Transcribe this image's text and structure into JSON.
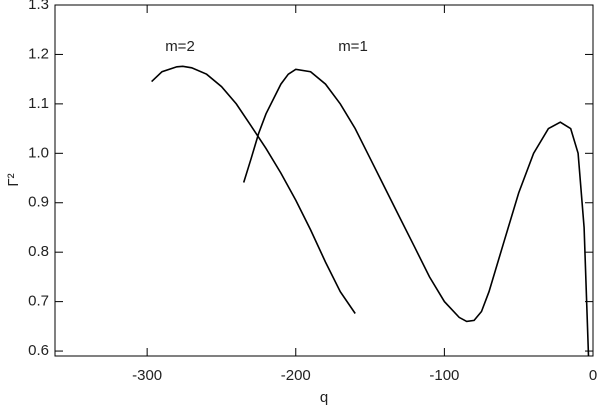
{
  "chart_data": {
    "type": "line",
    "xlabel": "q",
    "ylabel": "Γ²",
    "annotations": [
      "m=2",
      "m=1"
    ],
    "series": [
      {
        "name": "m=1",
        "color": "#000000",
        "x": [
          -235,
          -230,
          -225,
          -220,
          -210,
          -205,
          -200,
          -190,
          -180,
          -170,
          -160,
          -150,
          -140,
          -130,
          -120,
          -110,
          -100,
          -90,
          -85,
          -80,
          -75,
          -70,
          -60,
          -50,
          -40,
          -30,
          -22,
          -15,
          -10,
          -6,
          -3
        ],
        "values": [
          0.941,
          0.99,
          1.04,
          1.08,
          1.14,
          1.16,
          1.17,
          1.165,
          1.14,
          1.1,
          1.05,
          0.99,
          0.93,
          0.87,
          0.81,
          0.75,
          0.7,
          0.668,
          0.66,
          0.662,
          0.68,
          0.72,
          0.82,
          0.92,
          1.0,
          1.05,
          1.063,
          1.05,
          1.0,
          0.85,
          0.59
        ]
      },
      {
        "name": "m=2",
        "color": "#000000",
        "x": [
          -297,
          -290,
          -280,
          -276,
          -270,
          -260,
          -250,
          -240,
          -230,
          -220,
          -210,
          -200,
          -190,
          -180,
          -170,
          -160
        ],
        "values": [
          1.145,
          1.165,
          1.175,
          1.176,
          1.173,
          1.16,
          1.135,
          1.1,
          1.055,
          1.01,
          0.96,
          0.905,
          0.845,
          0.78,
          0.72,
          0.676
        ]
      }
    ],
    "xlim": [
      -362,
      0
    ],
    "ylim": [
      0.59,
      1.3
    ],
    "xticks": [
      -300,
      -200,
      -100,
      0
    ],
    "yticks": [
      0.6,
      0.7,
      0.8,
      0.9,
      {
        "value": 1,
        "label": "1.0"
      },
      1.1,
      1.2,
      1.3
    ]
  }
}
